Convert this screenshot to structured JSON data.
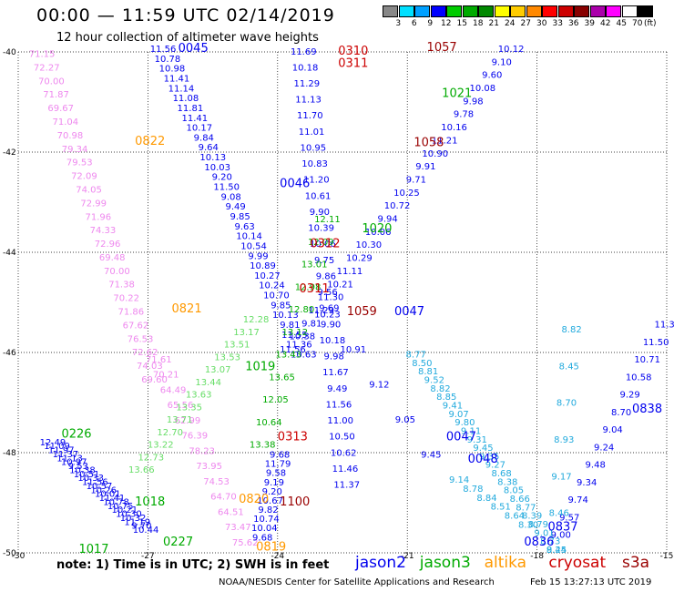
{
  "header": {
    "title": "00:00 — 11:59 UTC 02/14/2019",
    "subtitle": "12 hour collection of altimeter wave heights"
  },
  "colorbar": {
    "unit": "(ft)",
    "bins": [
      {
        "label": "3",
        "color": "#888888"
      },
      {
        "label": "6",
        "color": "#00e0ff"
      },
      {
        "label": "9",
        "color": "#00a0ff"
      },
      {
        "label": "12",
        "color": "#0000ff"
      },
      {
        "label": "15",
        "color": "#00cc00"
      },
      {
        "label": "18",
        "color": "#00aa00"
      },
      {
        "label": "21",
        "color": "#008800"
      },
      {
        "label": "24",
        "color": "#ffff00"
      },
      {
        "label": "27",
        "color": "#ffcc00"
      },
      {
        "label": "30",
        "color": "#ff8800"
      },
      {
        "label": "33",
        "color": "#ff0000"
      },
      {
        "label": "36",
        "color": "#cc0000"
      },
      {
        "label": "39",
        "color": "#880000"
      },
      {
        "label": "42",
        "color": "#aa00aa"
      },
      {
        "label": "45",
        "color": "#ff00ff"
      },
      {
        "label": "70",
        "color": "#ffffff"
      },
      {
        "label": "",
        "color": "#000000"
      }
    ]
  },
  "chart_data": {
    "type": "scatter",
    "xlim": [
      -30,
      -15
    ],
    "ylim": [
      -50,
      -40
    ],
    "x_ticks": [
      {
        "v": -30,
        "label": "-30"
      },
      {
        "v": -27,
        "label": "-27"
      },
      {
        "v": -24,
        "label": "-24"
      },
      {
        "v": -21,
        "label": "-21"
      },
      {
        "v": -18,
        "label": "-18"
      },
      {
        "v": -15,
        "label": "-15"
      }
    ],
    "y_ticks": [
      {
        "v": -40,
        "label": "-40"
      },
      {
        "v": -42,
        "label": "-42"
      },
      {
        "v": -44,
        "label": "-44"
      },
      {
        "v": -46,
        "label": "-46"
      },
      {
        "v": -48,
        "label": "-48"
      },
      {
        "v": -50,
        "label": "-50"
      }
    ],
    "grid": true,
    "satellite_colors": {
      "j2": "#0000ee",
      "j3": "#00aa00",
      "j3l": "#66dd66",
      "cr": "#cc0000",
      "cy": "#22aadd",
      "pk": "#ee88ee",
      "pkd": "#cc66cc",
      "or": "#ff9900",
      "dk": "#990000"
    },
    "tracks": [
      {
        "sat": "pk",
        "x0": -29.45,
        "y0": -40.1,
        "x1": -26.85,
        "y1": -46.6,
        "values": [
          "71.15",
          "72.27",
          "70.00",
          "71.87",
          "69.67",
          "71.04",
          "70.98",
          "79.34",
          "79.53",
          "72.09",
          "74.05",
          "72.99",
          "71.96",
          "74.33",
          "72.96",
          "69.48",
          "70.00",
          "71.38",
          "70.22",
          "71.86",
          "67.62",
          "76.53",
          "72.62",
          "74.03",
          "69.60"
        ]
      },
      {
        "sat": "pk",
        "x0": -26.75,
        "y0": -46.2,
        "x1": -24.75,
        "y1": -49.85,
        "values": [
          "71.61",
          "70.21",
          "64.49",
          "65.56",
          "62.99",
          "76.39",
          "78.23",
          "73.95",
          "74.53",
          "64.70",
          "64.51",
          "73.47",
          "75.62"
        ]
      },
      {
        "sat": "j2",
        "x0": -26.65,
        "y0": -40.0,
        "x1": -23.4,
        "y1": -46.1,
        "values": [
          "11.56",
          "10.78",
          "10.98",
          "11.41",
          "11.14",
          "11.08",
          "11.81",
          "11.41",
          "10.17",
          "9.84",
          "9.64",
          "10.13",
          "10.03",
          "9.20",
          "11.50",
          "9.08",
          "9.49",
          "9.85",
          "9.63",
          "10.14",
          "10.54",
          "9.99",
          "10.89",
          "10.27",
          "10.24",
          "10.70",
          "9.85",
          "10.13",
          "9.81",
          "11.55",
          "11.36",
          "10.63"
        ]
      },
      {
        "sat": "j2",
        "x0": -23.4,
        "y0": -40.05,
        "x1": -22.4,
        "y1": -48.7,
        "values": [
          "11.69",
          "10.18",
          "11.29",
          "11.13",
          "11.70",
          "11.01",
          "10.95",
          "10.83",
          "11.20",
          "10.61",
          "9.90",
          "10.39",
          "10.06",
          "9.75",
          "9.86",
          "9.56",
          "9.69",
          "9.90",
          "10.18",
          "9.98",
          "11.67",
          "9.49",
          "11.56",
          "11.00",
          "10.50",
          "10.62",
          "11.46",
          "11.37"
        ]
      },
      {
        "sat": "j2",
        "x0": -23.95,
        "y0": -48.1,
        "x1": -24.35,
        "y1": -49.75,
        "values": [
          "9.68",
          "11.79",
          "9.58",
          "9.19",
          "9.20",
          "10.67",
          "9.82",
          "10.74",
          "10.04",
          "9.68"
        ]
      },
      {
        "sat": "j2",
        "x0": -18.6,
        "y0": -40.0,
        "x1": -23.65,
        "y1": -46.0,
        "values": [
          "10.12",
          "9.10",
          "9.60",
          "10.08",
          "9.98",
          "9.78",
          "10.16",
          "11.21",
          "10.90",
          "9.91",
          "9.71",
          "10.25",
          "10.72",
          "9.94",
          "10.06",
          "10.30",
          "10.29",
          "11.11",
          "10.21",
          "11.30",
          "11.29",
          "9.81",
          "10.38",
          "11.56"
        ]
      },
      {
        "sat": "j2",
        "x0": -22.85,
        "y0": -45.3,
        "x1": -20.45,
        "y1": -48.1,
        "values": [
          "10.23",
          "10.91",
          "9.12",
          "9.05",
          "9.45"
        ]
      },
      {
        "sat": "j2",
        "x0": -29.2,
        "y0": -47.85,
        "x1": -27.05,
        "y1": -49.6,
        "values": [
          "12.49",
          "11.09",
          "11.97",
          "11.37",
          "11.13",
          "10.97",
          "9.53",
          "10.38",
          "10.51",
          "10.33",
          "11.56",
          "10.57",
          "10.26",
          "10.01",
          "11.41",
          "10.78",
          "10.75",
          "10.21",
          "10.30",
          "10.32",
          "11.19",
          "9.70",
          "10.44"
        ]
      },
      {
        "sat": "j2",
        "x0": -15.05,
        "y0": -45.5,
        "x1": -17.45,
        "y1": -49.7,
        "values": [
          "11.3",
          "11.50",
          "10.71",
          "10.58",
          "9.29",
          "8.70",
          "9.04",
          "9.24",
          "9.48",
          "9.34",
          "9.74",
          "9.57",
          "9.00"
        ]
      },
      {
        "sat": "j3",
        "x0": -22.85,
        "y0": -43.4,
        "x1": -24.35,
        "y1": -47.9,
        "values": [
          "12.11",
          "12.09",
          "13.01",
          "12.98",
          "12.80",
          "13.12",
          "13.43",
          "13.65",
          "12.05",
          "10.64",
          "13.38"
        ]
      },
      {
        "sat": "j3l",
        "x0": -24.5,
        "y0": -45.4,
        "x1": -27.15,
        "y1": -48.4,
        "values": [
          "12.28",
          "13.17",
          "13.51",
          "13.53",
          "13.07",
          "13.44",
          "13.63",
          "13.35",
          "13.71",
          "12.70",
          "13.22",
          "12.73",
          "13.66"
        ]
      },
      {
        "sat": "cy",
        "x0": -20.8,
        "y0": -46.1,
        "x1": -17.55,
        "y1": -50.0,
        "values": [
          "8.77",
          "8.50",
          "8.81",
          "9.52",
          "8.82",
          "8.85",
          "9.41",
          "9.07",
          "9.80",
          "9.11",
          "9.31",
          "9.45",
          "9.35",
          "9.27",
          "8.68",
          "8.38",
          "8.05",
          "8.66",
          "8.77",
          "8.39",
          "8.79",
          "9.01",
          "8.73",
          "9.24"
        ]
      },
      {
        "sat": "cy",
        "x0": -17.2,
        "y0": -45.6,
        "x1": -17.55,
        "y1": -50.0,
        "values": [
          "8.82",
          "8.45",
          "8.70",
          "8.93",
          "9.17",
          "8.46",
          "8.45"
        ]
      },
      {
        "sat": "cy",
        "x0": -19.8,
        "y0": -48.6,
        "x1": -18.2,
        "y1": -49.5,
        "values": [
          "9.14",
          "8.78",
          "8.84",
          "8.51",
          "8.64",
          "8.30"
        ]
      }
    ],
    "labels": [
      {
        "sat": "j2",
        "text": "0045",
        "x": -26.3,
        "y": -40.0
      },
      {
        "sat": "dk",
        "text": "1057",
        "x": -20.55,
        "y": -39.98
      },
      {
        "sat": "j3",
        "text": "1021",
        "x": -20.2,
        "y": -40.9
      },
      {
        "sat": "dk",
        "text": "1058",
        "x": -20.85,
        "y": -41.88
      },
      {
        "sat": "cr",
        "text": "0310",
        "x": -22.6,
        "y": -40.05
      },
      {
        "sat": "cr",
        "text": "0311",
        "x": -22.6,
        "y": -40.3
      },
      {
        "sat": "or",
        "text": "0822",
        "x": -27.3,
        "y": -41.85
      },
      {
        "sat": "j2",
        "text": "0046",
        "x": -23.95,
        "y": -42.7
      },
      {
        "sat": "j3",
        "text": "1020",
        "x": -22.05,
        "y": -43.6
      },
      {
        "sat": "cr",
        "text": "0312",
        "x": -23.25,
        "y": -43.9
      },
      {
        "sat": "cr",
        "text": "0311",
        "x": -23.5,
        "y": -44.8
      },
      {
        "sat": "or",
        "text": "0821",
        "x": -26.45,
        "y": -45.2
      },
      {
        "sat": "dk",
        "text": "1059",
        "x": -22.4,
        "y": -45.25
      },
      {
        "sat": "j2",
        "text": "0047",
        "x": -21.3,
        "y": -45.25
      },
      {
        "sat": "j3",
        "text": "1019",
        "x": -24.75,
        "y": -46.35
      },
      {
        "sat": "j3",
        "text": "0226",
        "x": -29.0,
        "y": -47.7
      },
      {
        "sat": "cr",
        "text": "0313",
        "x": -24.0,
        "y": -47.75
      },
      {
        "sat": "j2",
        "text": "0047",
        "x": -20.1,
        "y": -47.75
      },
      {
        "sat": "j2",
        "text": "0048",
        "x": -19.6,
        "y": -48.2
      },
      {
        "sat": "j2",
        "text": "0838",
        "x": -15.8,
        "y": -47.2
      },
      {
        "sat": "j3",
        "text": "1018",
        "x": -27.3,
        "y": -49.05
      },
      {
        "sat": "or",
        "text": "0820",
        "x": -24.9,
        "y": -49.0
      },
      {
        "sat": "dk",
        "text": "1100",
        "x": -23.95,
        "y": -49.05
      },
      {
        "sat": "j3",
        "text": "0227",
        "x": -26.65,
        "y": -49.85
      },
      {
        "sat": "j3",
        "text": "1017",
        "x": -28.6,
        "y": -50.0
      },
      {
        "sat": "or",
        "text": "0819",
        "x": -24.5,
        "y": -49.95
      },
      {
        "sat": "j2",
        "text": "0837",
        "x": -17.75,
        "y": -49.55
      },
      {
        "sat": "j2",
        "text": "0836",
        "x": -18.3,
        "y": -49.85
      }
    ]
  },
  "footer": {
    "note": "note:  1) Time is in UTC;  2) SWH is in feet",
    "satellites": [
      {
        "name": "jason2",
        "color": "#0000ee"
      },
      {
        "name": "jason3",
        "color": "#00aa00"
      },
      {
        "name": "altika",
        "color": "#ff9900"
      },
      {
        "name": "cryosat",
        "color": "#cc0000"
      },
      {
        "name": "s3a",
        "color": "#990000"
      }
    ],
    "credit": "NOAA/NESDIS Center for Satellite Applications and Research",
    "timestamp": "Feb 15 13:27:13 UTC 2019"
  }
}
